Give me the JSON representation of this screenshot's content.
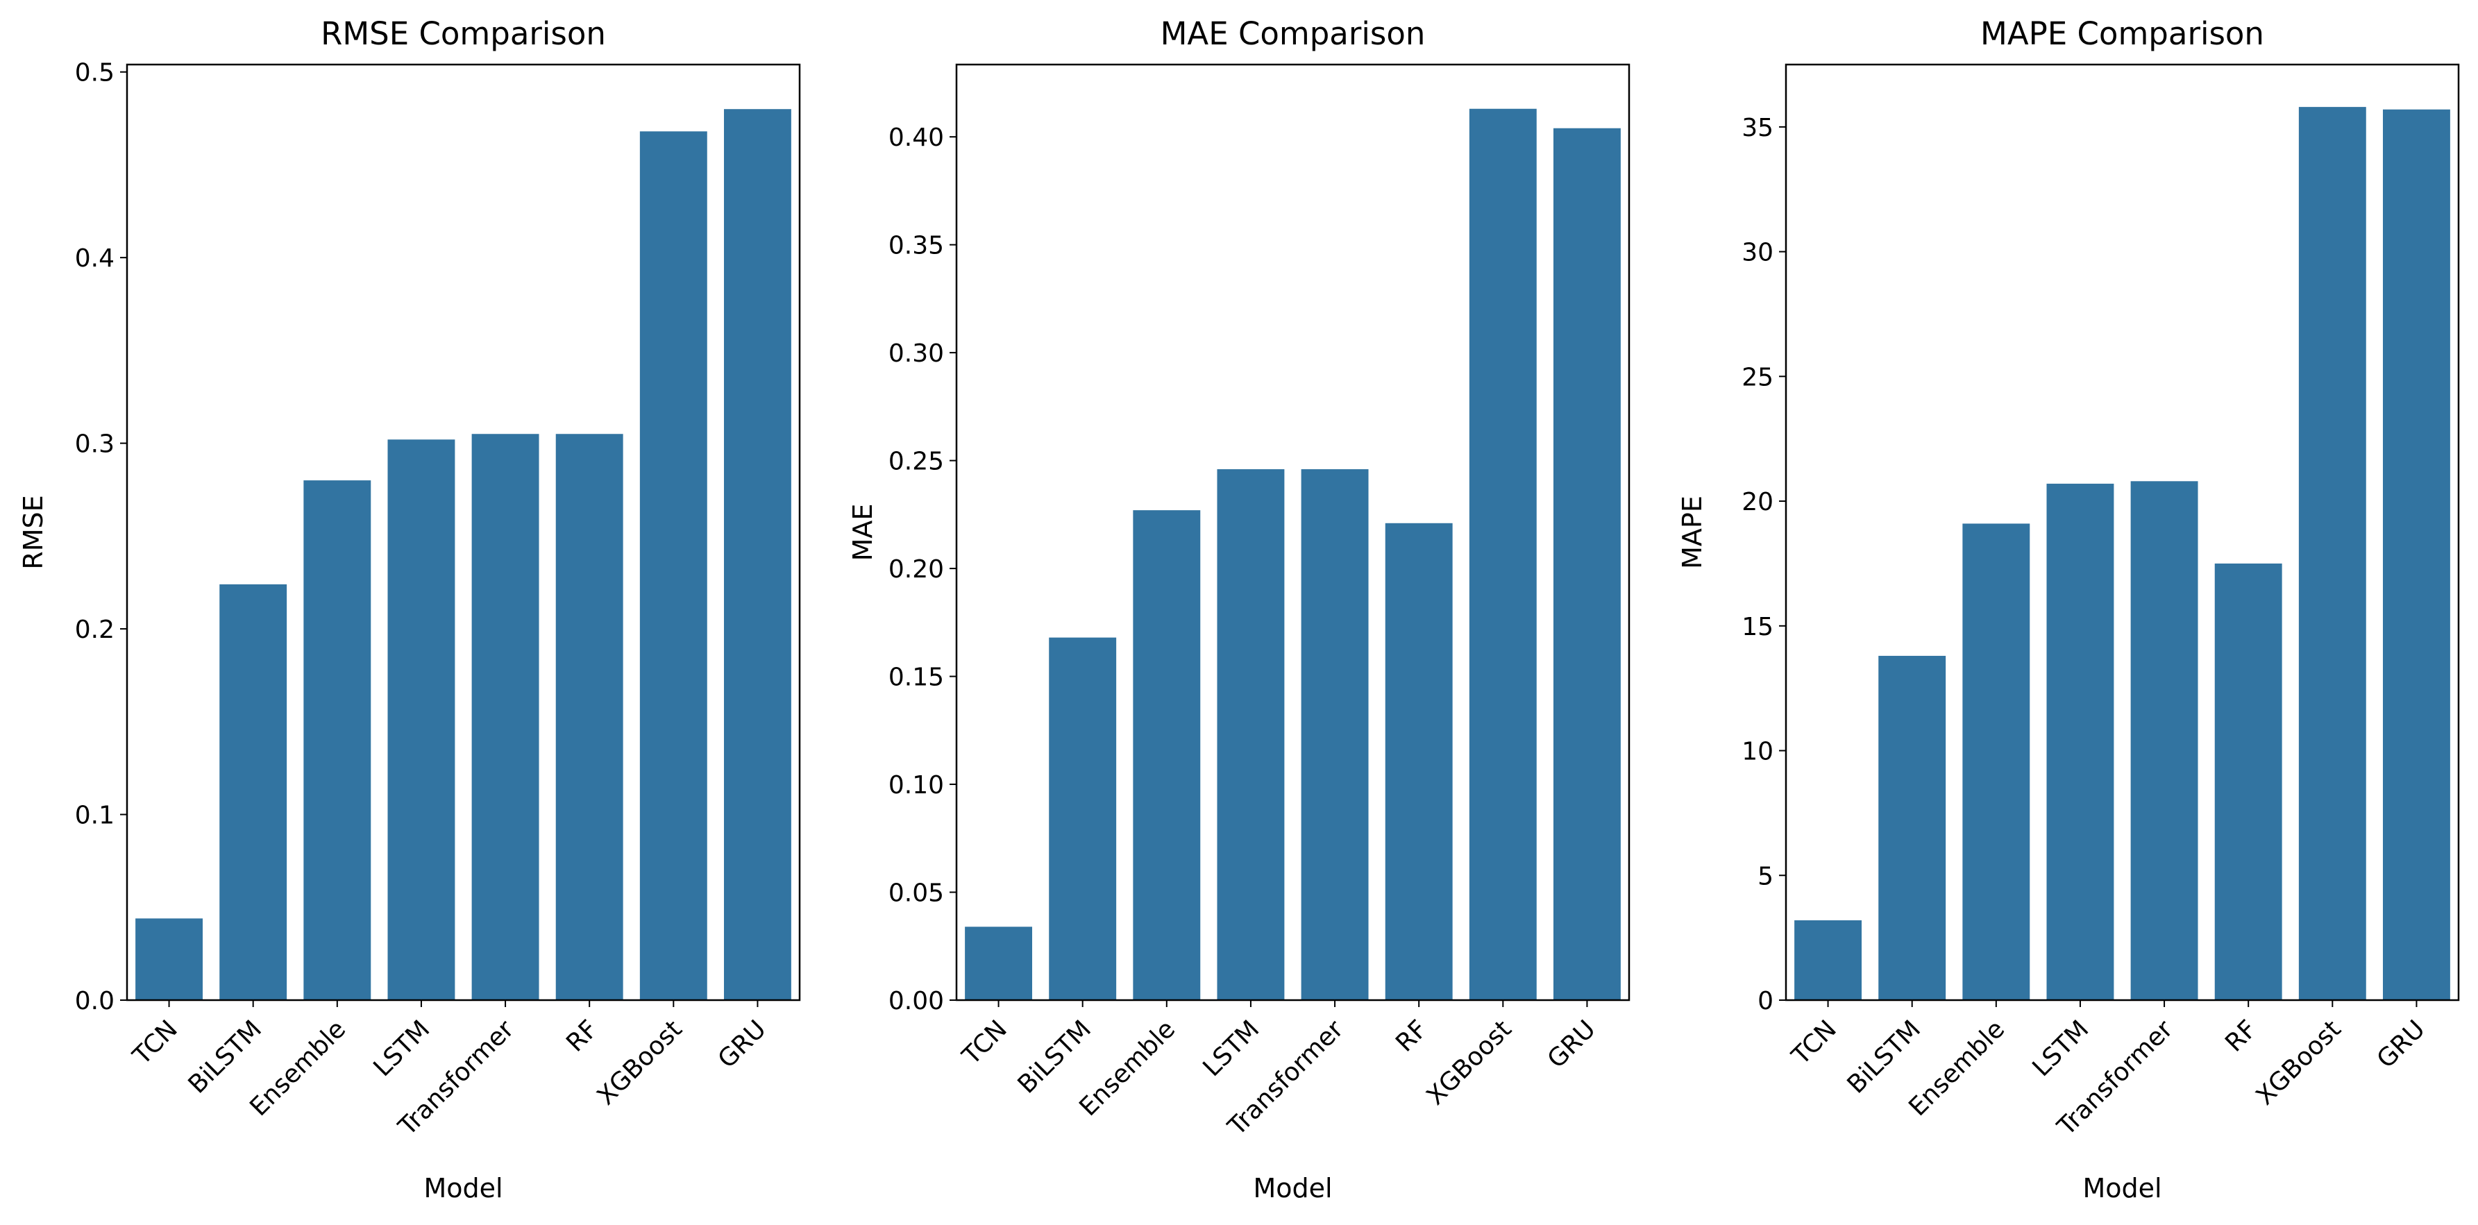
{
  "chart_data": [
    {
      "type": "bar",
      "title": "RMSE Comparison",
      "xlabel": "Model",
      "ylabel": "RMSE",
      "categories": [
        "TCN",
        "BiLSTM",
        "Ensemble",
        "LSTM",
        "Transformer",
        "RF",
        "XGBoost",
        "GRU"
      ],
      "values": [
        0.044,
        0.224,
        0.28,
        0.302,
        0.305,
        0.305,
        0.468,
        0.48
      ],
      "ylim": [
        0,
        0.504
      ],
      "yticks": [
        0.0,
        0.1,
        0.2,
        0.3,
        0.4,
        0.5
      ],
      "ytick_labels": [
        "0.0",
        "0.1",
        "0.2",
        "0.3",
        "0.4",
        "0.5"
      ],
      "bar_color": "#3274a1",
      "grid": false,
      "legend": false
    },
    {
      "type": "bar",
      "title": "MAE Comparison",
      "xlabel": "Model",
      "ylabel": "MAE",
      "categories": [
        "TCN",
        "BiLSTM",
        "Ensemble",
        "LSTM",
        "Transformer",
        "RF",
        "XGBoost",
        "GRU"
      ],
      "values": [
        0.034,
        0.168,
        0.227,
        0.246,
        0.246,
        0.221,
        0.413,
        0.404
      ],
      "ylim": [
        0,
        0.4335
      ],
      "yticks": [
        0.0,
        0.05,
        0.1,
        0.15,
        0.2,
        0.25,
        0.3,
        0.35,
        0.4
      ],
      "ytick_labels": [
        "0.00",
        "0.05",
        "0.10",
        "0.15",
        "0.20",
        "0.25",
        "0.30",
        "0.35",
        "0.40"
      ],
      "bar_color": "#3274a1",
      "grid": false,
      "legend": false
    },
    {
      "type": "bar",
      "title": "MAPE Comparison",
      "xlabel": "Model",
      "ylabel": "MAPE",
      "categories": [
        "TCN",
        "BiLSTM",
        "Ensemble",
        "LSTM",
        "Transformer",
        "RF",
        "XGBoost",
        "GRU"
      ],
      "values": [
        3.2,
        13.8,
        19.1,
        20.7,
        20.8,
        17.5,
        35.8,
        35.7
      ],
      "ylim": [
        0,
        37.5
      ],
      "yticks": [
        0,
        5,
        10,
        15,
        20,
        25,
        30,
        35
      ],
      "ytick_labels": [
        "0",
        "5",
        "10",
        "15",
        "20",
        "25",
        "30",
        "35"
      ],
      "bar_color": "#3274a1",
      "grid": false,
      "legend": false
    }
  ]
}
